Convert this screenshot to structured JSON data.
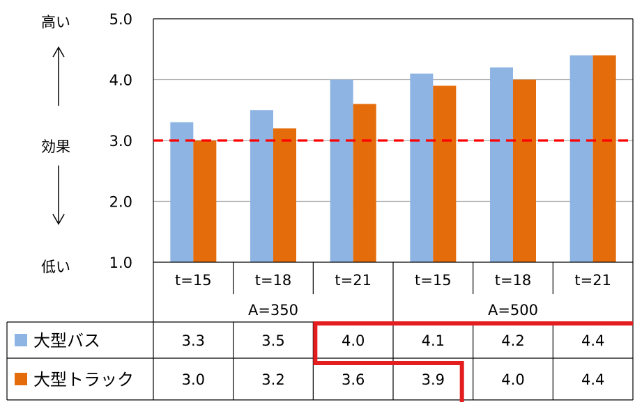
{
  "y_axis_side": {
    "high_label": "高い",
    "effect_label": "効果",
    "low_label": "低い",
    "arrow_up": "↑",
    "arrow_down": "↓"
  },
  "chart_data": {
    "type": "bar",
    "ylim": [
      1.0,
      5.0
    ],
    "y_ticks": [
      {
        "value": 5.0,
        "label": "5.0"
      },
      {
        "value": 4.0,
        "label": "4.0"
      },
      {
        "value": 3.0,
        "label": "3.0"
      },
      {
        "value": 2.0,
        "label": "2.0"
      },
      {
        "value": 1.0,
        "label": "1.0"
      }
    ],
    "grid": true,
    "reference_line": {
      "value": 3.0,
      "color": "#ff0000",
      "style": "dashed"
    },
    "categories": [
      "t=15",
      "t=18",
      "t=21",
      "t=15",
      "t=18",
      "t=21"
    ],
    "groups": [
      {
        "label": "A=350",
        "span": 3
      },
      {
        "label": "A=500",
        "span": 3
      }
    ],
    "series": [
      {
        "name": "大型バス",
        "color": "#8db4e2",
        "values": [
          3.3,
          3.5,
          4.0,
          4.1,
          4.2,
          4.4
        ],
        "labels": [
          "3.3",
          "3.5",
          "4.0",
          "4.1",
          "4.2",
          "4.4"
        ]
      },
      {
        "name": "大型トラック",
        "color": "#e46c0a",
        "values": [
          3.0,
          3.2,
          3.6,
          3.9,
          4.0,
          4.4
        ],
        "labels": [
          "3.0",
          "3.2",
          "3.6",
          "3.9",
          "4.0",
          "4.4"
        ]
      }
    ],
    "highlight_color": "#e41e1e"
  }
}
